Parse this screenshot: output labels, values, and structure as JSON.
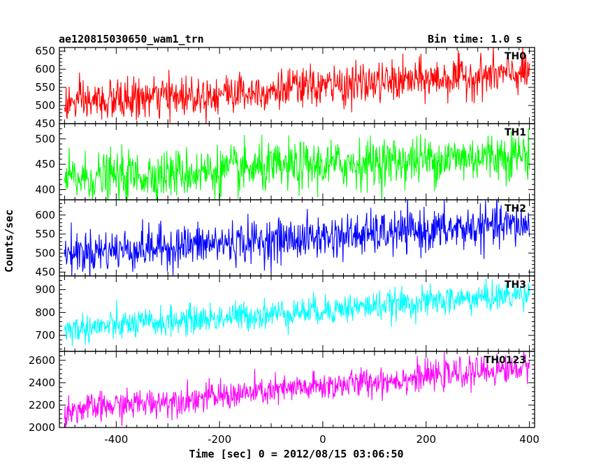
{
  "header": {
    "title": "ae120815030650_wam1_trn",
    "bin_time": "Bin time: 1.0 s"
  },
  "axes": {
    "ylabel": "Counts/sec",
    "xlabel": "Time [sec] 0 = 2012/08/15 03:06:50"
  },
  "chart_data": {
    "type": "line",
    "x_range": [
      -510,
      410
    ],
    "x_ticks": [
      -400,
      -200,
      0,
      200,
      400
    ],
    "bin_time_s": 1.0,
    "panels": [
      {
        "name": "TH0",
        "color": "#ff0000",
        "ylim": [
          450,
          660
        ],
        "y_ticks": [
          450,
          500,
          550,
          600,
          650
        ],
        "trend_start": 505,
        "trend_end": 590,
        "noise": 28
      },
      {
        "name": "TH1",
        "color": "#00ff00",
        "ylim": [
          380,
          530
        ],
        "y_ticks": [
          400,
          450,
          500
        ],
        "trend_start": 420,
        "trend_end": 470,
        "noise": 24
      },
      {
        "name": "TH2",
        "color": "#0000ff",
        "ylim": [
          440,
          640
        ],
        "y_ticks": [
          450,
          500,
          550,
          600
        ],
        "trend_start": 500,
        "trend_end": 575,
        "noise": 28
      },
      {
        "name": "TH3",
        "color": "#00ffff",
        "ylim": [
          630,
          960
        ],
        "y_ticks": [
          700,
          800,
          900
        ],
        "trend_start": 725,
        "trend_end": 880,
        "noise": 32
      },
      {
        "name": "TH0123",
        "color": "#ff00ff",
        "ylim": [
          2000,
          2680
        ],
        "y_ticks": [
          2000,
          2200,
          2400,
          2600
        ],
        "trend_start": 2150,
        "trend_end": 2540,
        "noise": 65
      }
    ]
  }
}
